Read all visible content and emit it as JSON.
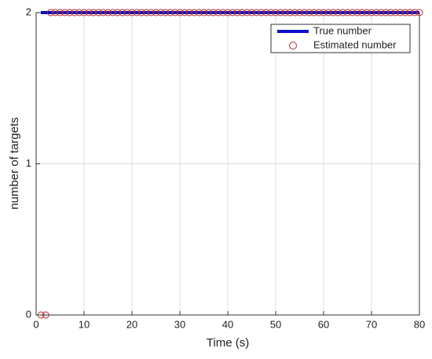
{
  "chart_data": {
    "type": "line",
    "xlabel": "Time (s)",
    "ylabel": "number of targets",
    "xlim": [
      0,
      80
    ],
    "ylim": [
      0,
      2
    ],
    "xticks": [
      0,
      10,
      20,
      30,
      40,
      50,
      60,
      70,
      80
    ],
    "yticks": [
      0,
      1,
      2
    ],
    "grid": true,
    "legend": "upper right",
    "series": [
      {
        "name": "True number",
        "color": "#0a10c8",
        "style": "line",
        "x": [
          1,
          80
        ],
        "values": [
          2,
          2
        ]
      },
      {
        "name": "Estimated number",
        "color": "#b02828",
        "style": "circle",
        "x": [
          1,
          2,
          3,
          4,
          5,
          6,
          7,
          8,
          9,
          10,
          11,
          12,
          13,
          14,
          15,
          16,
          17,
          18,
          19,
          20,
          21,
          22,
          23,
          24,
          25,
          26,
          27,
          28,
          29,
          30,
          31,
          32,
          33,
          34,
          35,
          36,
          37,
          38,
          39,
          40,
          41,
          42,
          43,
          44,
          45,
          46,
          47,
          48,
          49,
          50,
          51,
          52,
          53,
          54,
          55,
          56,
          57,
          58,
          59,
          60,
          61,
          62,
          63,
          64,
          65,
          66,
          67,
          68,
          69,
          70,
          71,
          72,
          73,
          74,
          75,
          76,
          77,
          78,
          79,
          80
        ],
        "values": [
          0,
          0,
          2,
          2,
          2,
          2,
          2,
          2,
          2,
          2,
          2,
          2,
          2,
          2,
          2,
          2,
          2,
          2,
          2,
          2,
          2,
          2,
          2,
          2,
          2,
          2,
          2,
          2,
          2,
          2,
          2,
          2,
          2,
          2,
          2,
          2,
          2,
          2,
          2,
          2,
          2,
          2,
          2,
          2,
          2,
          2,
          2,
          2,
          2,
          2,
          2,
          2,
          2,
          2,
          2,
          2,
          2,
          2,
          2,
          2,
          2,
          2,
          2,
          2,
          2,
          2,
          2,
          2,
          2,
          2,
          2,
          2,
          2,
          2,
          2,
          2,
          2,
          2,
          2,
          2
        ]
      }
    ]
  }
}
